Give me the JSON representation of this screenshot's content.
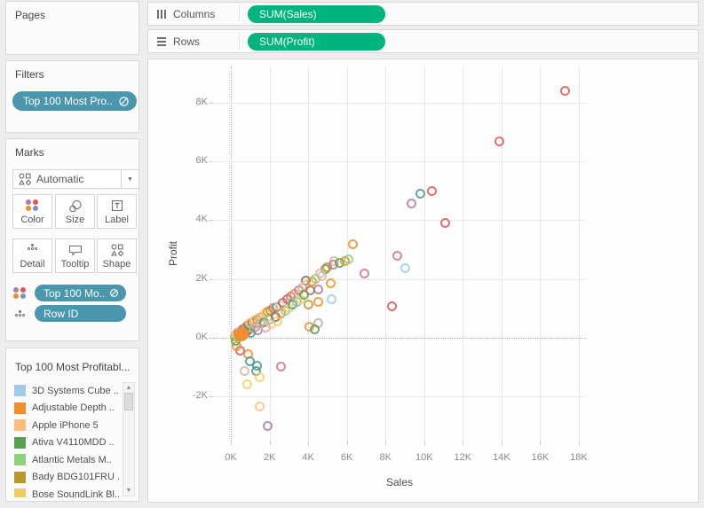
{
  "shelves": {
    "columns": {
      "label": "Columns",
      "pill": "SUM(Sales)"
    },
    "rows": {
      "label": "Rows",
      "pill": "SUM(Profit)"
    },
    "pill_color": "#00b47e"
  },
  "sidebar": {
    "pages": {
      "title": "Pages"
    },
    "filters": {
      "title": "Filters",
      "pill": "Top 100 Most Pro..",
      "pill_color": "#4a96ad"
    },
    "marks": {
      "title": "Marks",
      "mark_type": "Automatic",
      "buttons": [
        {
          "label": "Color"
        },
        {
          "label": "Size"
        },
        {
          "label": "Label"
        },
        {
          "label": "Detail"
        },
        {
          "label": "Tooltip"
        },
        {
          "label": "Shape"
        }
      ],
      "pills": [
        {
          "label": "Top 100 Mo..",
          "icon": "color-legend"
        },
        {
          "label": "Row ID",
          "icon": "detail"
        }
      ],
      "pill_color": "#4a96ad"
    },
    "legend": {
      "title": "Top 100 Most Profitabl...",
      "items": [
        {
          "label": "3D Systems Cube ..",
          "color": "#a0cbe8"
        },
        {
          "label": "Adjustable Depth ..",
          "color": "#f28e2b"
        },
        {
          "label": "Apple iPhone 5",
          "color": "#ffbe7d"
        },
        {
          "label": "Ativa V4110MDD ..",
          "color": "#59a14f"
        },
        {
          "label": "Atlantic Metals M..",
          "color": "#8cd17d"
        },
        {
          "label": "Bady BDG101FRU ..",
          "color": "#b6992d"
        },
        {
          "label": "Bose SoundLink Bl..",
          "color": "#f1ce63"
        }
      ]
    }
  },
  "chart_data": {
    "type": "scatter",
    "title": "",
    "xlabel": "Sales",
    "ylabel": "Profit",
    "units": "K (thousands)",
    "xlim": [
      -0.92,
      18.37
    ],
    "ylim": [
      -3.51,
      9.24
    ],
    "x_ticks": {
      "values": [
        0,
        2,
        4,
        6,
        8,
        10,
        12,
        14,
        16,
        18
      ],
      "labels": [
        "0K",
        "2K",
        "4K",
        "6K",
        "8K",
        "10K",
        "12K",
        "14K",
        "16K",
        "18K"
      ]
    },
    "y_ticks": {
      "values": [
        -2,
        0,
        2,
        4,
        6,
        8
      ],
      "labels": [
        "-2K",
        "0K",
        "2K",
        "4K",
        "6K",
        "8K"
      ]
    },
    "grid": "solid gridlines every 2K, dotted zero lines",
    "legend_position": "left-bottom panel",
    "points": [
      [
        17.3,
        8.4,
        "#e15759"
      ],
      [
        13.9,
        6.7,
        "#e15759"
      ],
      [
        10.4,
        5.0,
        "#e15759"
      ],
      [
        9.8,
        4.92,
        "#499894"
      ],
      [
        9.35,
        4.58,
        "#b07aa1"
      ],
      [
        11.1,
        3.9,
        "#e15759"
      ],
      [
        6.3,
        3.18,
        "#f28e2b"
      ],
      [
        8.6,
        2.78,
        "#d37295"
      ],
      [
        9.0,
        2.36,
        "#a0cbe8"
      ],
      [
        6.9,
        2.2,
        "#d37295"
      ],
      [
        8.35,
        1.06,
        "#e15759"
      ],
      [
        5.35,
        2.6,
        "#d7b5a6"
      ],
      [
        4.9,
        2.35,
        "#59a14f"
      ],
      [
        4.62,
        2.2,
        "#d7b5a6"
      ],
      [
        3.9,
        1.94,
        "#79706e"
      ],
      [
        5.15,
        1.85,
        "#f28e2b"
      ],
      [
        4.5,
        1.64,
        "#b07aa1"
      ],
      [
        4.0,
        1.12,
        "#b6992d"
      ],
      [
        4.5,
        1.21,
        "#f28e2b"
      ],
      [
        5.2,
        1.3,
        "#a0cbe8"
      ],
      [
        4.5,
        0.48,
        "#bab0ac"
      ],
      [
        4.05,
        0.36,
        "#f28e2b"
      ],
      [
        4.35,
        0.27,
        "#59a14f"
      ],
      [
        0.5,
        -0.45,
        "#e15759"
      ],
      [
        0.3,
        -0.3,
        "#f28e2b"
      ],
      [
        0.9,
        -0.55,
        "#f28e2b"
      ],
      [
        1.0,
        -0.8,
        "#499894"
      ],
      [
        1.35,
        -0.95,
        "#499894"
      ],
      [
        1.3,
        -1.15,
        "#499894"
      ],
      [
        2.6,
        -1.0,
        "#d37295"
      ],
      [
        0.7,
        -1.15,
        "#d7b5a6"
      ],
      [
        1.5,
        -1.35,
        "#f1ce63"
      ],
      [
        0.85,
        -1.6,
        "#f1ce63"
      ],
      [
        1.5,
        -2.35,
        "#ffbe7d"
      ],
      [
        1.9,
        -3.0,
        "#b07aa1"
      ],
      [
        0.2,
        0.05,
        "#f28e2b"
      ],
      [
        0.25,
        -0.1,
        "#59a14f"
      ],
      [
        0.3,
        0.12,
        "#ffbe7d"
      ],
      [
        0.35,
        0.02,
        "#8cd17d"
      ],
      [
        0.4,
        0.18,
        "#d37295"
      ],
      [
        0.45,
        0.05,
        "#b6992d"
      ],
      [
        0.5,
        0.22,
        "#fabfd2"
      ],
      [
        0.55,
        0.08,
        "#79706e"
      ],
      [
        0.6,
        0.28,
        "#4e79a7"
      ],
      [
        0.65,
        0.12,
        "#f1ce63"
      ],
      [
        0.7,
        0.32,
        "#b07aa1"
      ],
      [
        0.75,
        0.18,
        "#86bcb6"
      ],
      [
        0.8,
        0.38,
        "#f28e2b"
      ],
      [
        0.85,
        0.22,
        "#9d7660"
      ],
      [
        0.9,
        0.42,
        "#59a14f"
      ],
      [
        0.95,
        0.28,
        "#e15759"
      ],
      [
        1.0,
        0.48,
        "#ffbe7d"
      ],
      [
        1.05,
        0.15,
        "#499894"
      ],
      [
        1.1,
        0.52,
        "#d37295"
      ],
      [
        1.15,
        0.32,
        "#8cd17d"
      ],
      [
        1.2,
        0.58,
        "#f1ce63"
      ],
      [
        1.3,
        0.38,
        "#bab0ac"
      ],
      [
        1.35,
        0.62,
        "#f28e2b"
      ],
      [
        1.4,
        0.25,
        "#b07aa1"
      ],
      [
        1.5,
        0.68,
        "#8cd17d"
      ],
      [
        1.55,
        0.45,
        "#d7b5a6"
      ],
      [
        1.6,
        0.72,
        "#ff9d9a"
      ],
      [
        1.7,
        0.52,
        "#59a14f"
      ],
      [
        1.75,
        0.82,
        "#f1ce63"
      ],
      [
        1.8,
        0.35,
        "#d4a6c8"
      ],
      [
        1.9,
        0.88,
        "#f28e2b"
      ],
      [
        2.0,
        0.62,
        "#86bcb6"
      ],
      [
        2.05,
        0.92,
        "#b6992d"
      ],
      [
        2.1,
        0.45,
        "#ffbe7d"
      ],
      [
        2.2,
        1.0,
        "#d37295"
      ],
      [
        2.3,
        0.72,
        "#79706e"
      ],
      [
        2.35,
        1.05,
        "#59a14f"
      ],
      [
        2.4,
        0.55,
        "#f1ce63"
      ],
      [
        2.5,
        1.1,
        "#fabfd2"
      ],
      [
        2.6,
        0.82,
        "#f28e2b"
      ],
      [
        2.7,
        1.2,
        "#9d7660"
      ],
      [
        2.8,
        0.92,
        "#8cd17d"
      ],
      [
        2.9,
        1.3,
        "#e15759"
      ],
      [
        3.0,
        1.02,
        "#ffbe7d"
      ],
      [
        3.1,
        1.4,
        "#b07aa1"
      ],
      [
        3.2,
        1.12,
        "#59a14f"
      ],
      [
        3.3,
        1.5,
        "#f28e2b"
      ],
      [
        3.4,
        1.22,
        "#86bcb6"
      ],
      [
        3.5,
        1.6,
        "#d37295"
      ],
      [
        3.6,
        1.32,
        "#f1ce63"
      ],
      [
        3.7,
        1.7,
        "#bab0ac"
      ],
      [
        3.8,
        1.45,
        "#59a14f"
      ],
      [
        3.9,
        1.78,
        "#ffbe7d"
      ],
      [
        4.1,
        1.62,
        "#9d7660"
      ],
      [
        4.2,
        1.9,
        "#f28e2b"
      ],
      [
        4.4,
        2.0,
        "#8cd17d"
      ],
      [
        4.7,
        2.1,
        "#d7b5a6"
      ],
      [
        5.0,
        2.4,
        "#b6992d"
      ],
      [
        5.3,
        2.5,
        "#d37295"
      ],
      [
        5.6,
        2.55,
        "#59a14f"
      ],
      [
        5.9,
        2.6,
        "#f28e2b"
      ],
      [
        6.1,
        2.66,
        "#8cd17d"
      ],
      [
        0.55,
        0.12,
        "#f28e2b",
        "filled"
      ]
    ]
  }
}
